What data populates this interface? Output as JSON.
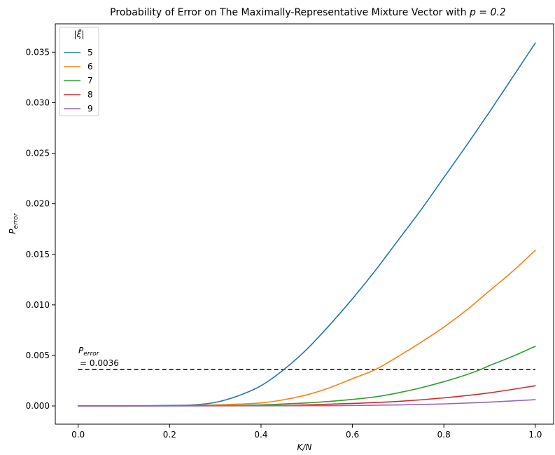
{
  "chart_data": {
    "type": "line",
    "title": "Probability of Error on The Maximally-Representative Mixture Vector with p = 0.2",
    "title_prefix": "Probability of Error on The Maximally-Representative Mixture Vector with ",
    "title_math": "p = 0.2",
    "xlabel": "K/N",
    "ylabel": "P",
    "ylabel_sub": "error",
    "xlim": [
      -0.05,
      1.04
    ],
    "ylim": [
      -0.0018,
      0.0378
    ],
    "xticks": [
      0.0,
      0.2,
      0.4,
      0.6,
      0.8,
      1.0
    ],
    "xtick_labels": [
      "0.0",
      "0.2",
      "0.4",
      "0.6",
      "0.8",
      "1.0"
    ],
    "yticks": [
      0.0,
      0.005,
      0.01,
      0.015,
      0.02,
      0.025,
      0.03,
      0.035
    ],
    "ytick_labels": [
      "0.000",
      "0.005",
      "0.010",
      "0.015",
      "0.020",
      "0.025",
      "0.030",
      "0.035"
    ],
    "grid": false,
    "legend": {
      "title": "|ξ̄|",
      "placement": "top-left"
    },
    "series": [
      {
        "name": "5",
        "color": "#1f77b4",
        "x": [
          0,
          0.1,
          0.2,
          0.25,
          0.3,
          0.35,
          0.4,
          0.45,
          0.5,
          0.55,
          0.6,
          0.65,
          0.7,
          0.75,
          0.8,
          0.85,
          0.9,
          0.95,
          1.0
        ],
        "y": [
          0,
          0,
          5e-05,
          0.0001,
          0.00035,
          0.001,
          0.002,
          0.0036,
          0.0056,
          0.008,
          0.0106,
          0.0134,
          0.0164,
          0.0194,
          0.0226,
          0.0258,
          0.0291,
          0.0325,
          0.0359
        ]
      },
      {
        "name": "6",
        "color": "#ff7f0e",
        "x": [
          0,
          0.2,
          0.3,
          0.35,
          0.4,
          0.45,
          0.5,
          0.55,
          0.6,
          0.65,
          0.7,
          0.75,
          0.8,
          0.85,
          0.9,
          0.95,
          1.0
        ],
        "y": [
          0,
          2e-05,
          0.0001,
          0.00018,
          0.0003,
          0.00062,
          0.0011,
          0.0018,
          0.0027,
          0.0036,
          0.0049,
          0.0063,
          0.0078,
          0.0095,
          0.0114,
          0.0133,
          0.0154
        ]
      },
      {
        "name": "7",
        "color": "#2ca02c",
        "x": [
          0,
          0.3,
          0.4,
          0.45,
          0.5,
          0.55,
          0.6,
          0.65,
          0.7,
          0.75,
          0.8,
          0.85,
          0.88,
          0.9,
          0.95,
          1.0
        ],
        "y": [
          0,
          3e-05,
          0.0001,
          0.0002,
          0.0003,
          0.00045,
          0.00065,
          0.0009,
          0.0013,
          0.0018,
          0.0024,
          0.0031,
          0.0036,
          0.004,
          0.0049,
          0.0059
        ]
      },
      {
        "name": "8",
        "color": "#d62728",
        "x": [
          0,
          0.4,
          0.5,
          0.6,
          0.7,
          0.8,
          0.9,
          1.0
        ],
        "y": [
          0,
          3e-05,
          0.0001,
          0.00025,
          0.00045,
          0.0008,
          0.0013,
          0.002
        ]
      },
      {
        "name": "9",
        "color": "#9467bd",
        "x": [
          0,
          0.5,
          0.6,
          0.7,
          0.8,
          0.9,
          1.0
        ],
        "y": [
          0,
          2e-05,
          5e-05,
          0.0001,
          0.0002,
          0.00038,
          0.00062
        ]
      }
    ],
    "threshold": {
      "y": 0.0036,
      "x_range": [
        0.0,
        1.0
      ],
      "style": "dashed",
      "color": "#000000",
      "annotation_symbol": "P",
      "annotation_sub": "error",
      "annotation_value": "= 0.0036"
    }
  }
}
